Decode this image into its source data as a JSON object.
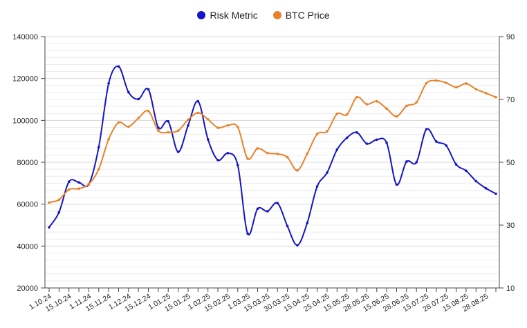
{
  "chart_data": {
    "type": "line",
    "title": "",
    "legend_position": "top",
    "grid": true,
    "x": [
      "1.10.24",
      "",
      "15.10.24",
      "",
      "1.11.24",
      "",
      "15.11.24",
      "",
      "1.12.24",
      "",
      "15.12.24",
      "",
      "1.01.25",
      "",
      "15.01.25",
      "",
      "1.02.25",
      "",
      "15.02.25",
      "",
      "1.03.25",
      "",
      "15.03.25",
      "",
      "30.03.25",
      "",
      "15.04.25",
      "",
      "25.04.25",
      "",
      "15.05.25",
      "",
      "28.05.25",
      "",
      "15.06.25",
      "",
      "28.06.25",
      "",
      "15.07.25",
      "",
      "28.07.25",
      "",
      "15.08.25",
      "",
      "28.08.25",
      ""
    ],
    "y_left": {
      "range": [
        20000,
        140000
      ],
      "ticks": [
        20000,
        40000,
        60000,
        80000,
        100000,
        120000,
        140000
      ]
    },
    "y_right": {
      "range": [
        10,
        90
      ],
      "ticks": [
        10,
        30,
        50,
        70,
        90
      ]
    },
    "series": [
      {
        "name": "Risk Metric",
        "axis": "right",
        "color": "#1414c8",
        "values": [
          29.3,
          34.1,
          43.8,
          43.6,
          43.0,
          54.8,
          75.1,
          80.5,
          72.3,
          70.1,
          73.2,
          61.0,
          63.0,
          53.3,
          61.7,
          69.4,
          57.3,
          50.7,
          52.9,
          49.1,
          27.3,
          35.2,
          34.4,
          37.0,
          29.7,
          23.6,
          30.7,
          42.3,
          46.7,
          54.0,
          57.8,
          59.5,
          55.9,
          57.2,
          56.2,
          42.9,
          50.2,
          50.0,
          60.5,
          56.6,
          55.3,
          49.3,
          47.3,
          44.0,
          41.7,
          40.0
        ]
      },
      {
        "name": "BTC Price",
        "axis": "left",
        "color": "#e8822a",
        "values": [
          60800,
          62100,
          67000,
          67400,
          69600,
          76700,
          91000,
          99000,
          97000,
          101100,
          104500,
          95100,
          94300,
          95100,
          100300,
          103600,
          100500,
          96500,
          97600,
          96800,
          81700,
          86600,
          84400,
          84000,
          82400,
          76100,
          84100,
          93500,
          94800,
          103100,
          102800,
          111100,
          107700,
          109100,
          105600,
          101900,
          106900,
          108600,
          117700,
          119000,
          117900,
          115800,
          117600,
          114900,
          113000,
          111100
        ]
      }
    ]
  }
}
